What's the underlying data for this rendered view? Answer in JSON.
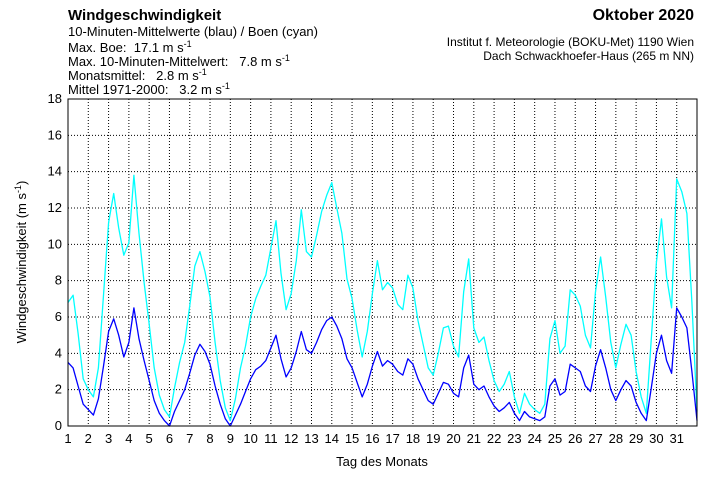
{
  "header": {
    "title": "Windgeschwindigkeit",
    "subtitle": "10-Minuten-Mittelwerte (blau) / Boen (cyan)",
    "stats": [
      {
        "label": "Max. Boe:",
        "value": "17.1 m s",
        "sup": "-1"
      },
      {
        "label": "Max. 10-Minuten-Mittelwert:",
        "value": "7.8 m s",
        "sup": "-1"
      },
      {
        "label": "Monatsmittel:",
        "value": "2.8 m s",
        "sup": "-1"
      },
      {
        "label": "Mittel 1971-2000:",
        "value": "3.2 m s",
        "sup": "-1"
      }
    ],
    "month": "Oktober 2020",
    "institute": "Institut f. Meteorologie (BOKU-Met) 1190 Wien",
    "location": "Dach Schwackhoefer-Haus (265 m NN)"
  },
  "chart_data": {
    "type": "line",
    "xlabel": "Tag des Monats",
    "ylabel": "Windgeschwindigkeit (m s",
    "ylabel_sup": "-1",
    "ylabel_close": ")",
    "xlim": [
      1,
      32
    ],
    "ylim": [
      0,
      18
    ],
    "yticks": [
      0,
      2,
      4,
      6,
      8,
      10,
      12,
      14,
      16,
      18
    ],
    "xticks": [
      1,
      2,
      3,
      4,
      5,
      6,
      7,
      8,
      9,
      10,
      11,
      12,
      13,
      14,
      15,
      16,
      17,
      18,
      19,
      20,
      21,
      22,
      23,
      24,
      25,
      26,
      27,
      28,
      29,
      30,
      31
    ],
    "grid": true,
    "colors": {
      "mean": "#0000ff",
      "gust": "#00ffff"
    },
    "series": [
      {
        "name": "10-Minuten-Mittelwerte (blau)",
        "color": "#0000ff",
        "x": [
          1.0,
          1.25,
          1.5,
          1.75,
          2.0,
          2.25,
          2.5,
          2.75,
          3.0,
          3.25,
          3.5,
          3.75,
          4.0,
          4.25,
          4.5,
          4.75,
          5.0,
          5.25,
          5.5,
          5.75,
          6.0,
          6.25,
          6.5,
          6.75,
          7.0,
          7.25,
          7.5,
          7.75,
          8.0,
          8.25,
          8.5,
          8.75,
          9.0,
          9.25,
          9.5,
          9.75,
          10.0,
          10.25,
          10.5,
          10.75,
          11.0,
          11.25,
          11.5,
          11.75,
          12.0,
          12.25,
          12.5,
          12.75,
          13.0,
          13.25,
          13.5,
          13.75,
          14.0,
          14.25,
          14.5,
          14.75,
          15.0,
          15.25,
          15.5,
          15.75,
          16.0,
          16.25,
          16.5,
          16.75,
          17.0,
          17.25,
          17.5,
          17.75,
          18.0,
          18.25,
          18.5,
          18.75,
          19.0,
          19.25,
          19.5,
          19.75,
          20.0,
          20.25,
          20.5,
          20.75,
          21.0,
          21.25,
          21.5,
          21.75,
          22.0,
          22.25,
          22.5,
          22.75,
          23.0,
          23.25,
          23.5,
          23.75,
          24.0,
          24.25,
          24.5,
          24.75,
          25.0,
          25.25,
          25.5,
          25.75,
          26.0,
          26.25,
          26.5,
          26.75,
          27.0,
          27.25,
          27.5,
          27.75,
          28.0,
          28.25,
          28.5,
          28.75,
          29.0,
          29.25,
          29.5,
          29.75,
          30.0,
          30.25,
          30.5,
          30.75,
          31.0,
          31.25,
          31.5,
          31.75,
          32.0
        ],
        "values": [
          3.5,
          3.2,
          2.2,
          1.2,
          0.9,
          0.6,
          1.5,
          3.3,
          5.2,
          5.9,
          5.0,
          3.8,
          4.6,
          6.5,
          4.8,
          3.6,
          2.5,
          1.4,
          0.7,
          0.3,
          0.0,
          0.8,
          1.4,
          2.0,
          2.9,
          3.9,
          4.5,
          4.1,
          3.4,
          2.2,
          1.2,
          0.4,
          0.0,
          0.6,
          1.2,
          1.9,
          2.6,
          3.1,
          3.3,
          3.6,
          4.3,
          5.0,
          3.7,
          2.7,
          3.2,
          4.1,
          5.2,
          4.2,
          4.0,
          4.6,
          5.3,
          5.8,
          6.0,
          5.5,
          4.8,
          3.7,
          3.2,
          2.4,
          1.6,
          2.3,
          3.3,
          4.1,
          3.3,
          3.6,
          3.4,
          3.0,
          2.8,
          3.7,
          3.4,
          2.6,
          2.0,
          1.4,
          1.2,
          1.8,
          2.4,
          2.3,
          1.8,
          1.6,
          3.2,
          3.9,
          2.3,
          2.0,
          2.2,
          1.6,
          1.1,
          0.8,
          1.0,
          1.3,
          0.7,
          0.3,
          0.8,
          0.5,
          0.4,
          0.3,
          0.5,
          2.2,
          2.6,
          1.7,
          1.9,
          3.4,
          3.2,
          3.0,
          2.2,
          1.9,
          3.3,
          4.2,
          3.2,
          2.0,
          1.4,
          2.0,
          2.5,
          2.2,
          1.3,
          0.7,
          0.3,
          2.1,
          4.0,
          5.0,
          3.6,
          2.9,
          6.5,
          6.0,
          5.4,
          3.0,
          0.3
        ]
      },
      {
        "name": "Boen (cyan)",
        "color": "#00ffff",
        "x": [
          1.0,
          1.25,
          1.5,
          1.75,
          2.0,
          2.25,
          2.5,
          2.75,
          3.0,
          3.25,
          3.5,
          3.75,
          4.0,
          4.25,
          4.5,
          4.75,
          5.0,
          5.25,
          5.5,
          5.75,
          6.0,
          6.25,
          6.5,
          6.75,
          7.0,
          7.25,
          7.5,
          7.75,
          8.0,
          8.25,
          8.5,
          8.75,
          9.0,
          9.25,
          9.5,
          9.75,
          10.0,
          10.25,
          10.5,
          10.75,
          11.0,
          11.25,
          11.5,
          11.75,
          12.0,
          12.25,
          12.5,
          12.75,
          13.0,
          13.25,
          13.5,
          13.75,
          14.0,
          14.25,
          14.5,
          14.75,
          15.0,
          15.25,
          15.5,
          15.75,
          16.0,
          16.25,
          16.5,
          16.75,
          17.0,
          17.25,
          17.5,
          17.75,
          18.0,
          18.25,
          18.5,
          18.75,
          19.0,
          19.25,
          19.5,
          19.75,
          20.0,
          20.25,
          20.5,
          20.75,
          21.0,
          21.25,
          21.5,
          21.75,
          22.0,
          22.25,
          22.5,
          22.75,
          23.0,
          23.25,
          23.5,
          23.75,
          24.0,
          24.25,
          24.5,
          24.75,
          25.0,
          25.25,
          25.5,
          25.75,
          26.0,
          26.25,
          26.5,
          26.75,
          27.0,
          27.25,
          27.5,
          27.75,
          28.0,
          28.25,
          28.5,
          28.75,
          29.0,
          29.25,
          29.5,
          29.75,
          30.0,
          30.25,
          30.5,
          30.75,
          31.0,
          31.25,
          31.5,
          31.75,
          32.0
        ],
        "values": [
          6.8,
          7.2,
          5.1,
          2.6,
          2.0,
          1.6,
          3.2,
          7.2,
          11.2,
          12.8,
          10.9,
          9.4,
          10.1,
          13.8,
          10.6,
          7.9,
          5.6,
          3.2,
          1.7,
          0.9,
          0.5,
          2.1,
          3.5,
          4.6,
          6.6,
          8.8,
          9.6,
          8.5,
          7.1,
          4.6,
          2.5,
          1.0,
          0.3,
          1.5,
          3.2,
          4.4,
          6.0,
          7.0,
          7.7,
          8.3,
          9.8,
          11.3,
          8.4,
          6.4,
          7.3,
          9.1,
          11.9,
          9.6,
          9.3,
          10.5,
          11.8,
          12.7,
          13.4,
          12.0,
          10.6,
          8.1,
          7.0,
          5.3,
          3.8,
          5.2,
          7.3,
          9.1,
          7.5,
          7.9,
          7.6,
          6.7,
          6.4,
          8.3,
          7.6,
          5.8,
          4.5,
          3.2,
          2.8,
          4.0,
          5.4,
          5.5,
          4.4,
          3.8,
          7.4,
          9.2,
          5.4,
          4.6,
          4.9,
          3.6,
          2.5,
          1.9,
          2.3,
          3.0,
          1.6,
          0.7,
          1.8,
          1.2,
          0.9,
          0.7,
          1.2,
          4.8,
          5.8,
          4.0,
          4.4,
          7.5,
          7.2,
          6.6,
          5.0,
          4.3,
          7.4,
          9.3,
          7.1,
          4.6,
          3.2,
          4.5,
          5.6,
          5.0,
          3.0,
          1.6,
          0.7,
          4.8,
          9.0,
          11.4,
          8.2,
          6.5,
          13.6,
          12.9,
          11.7,
          6.8,
          0.8
        ]
      }
    ]
  }
}
